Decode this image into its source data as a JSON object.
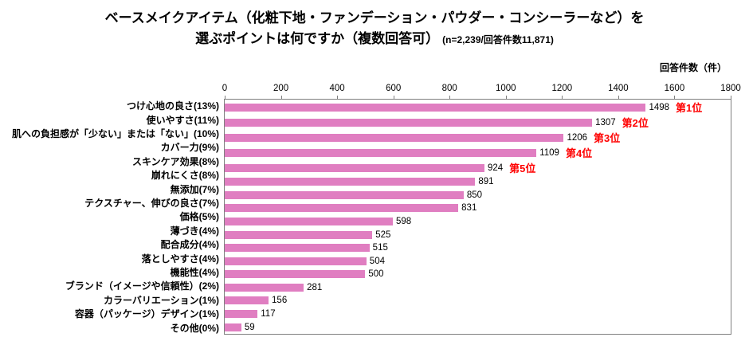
{
  "title": {
    "line1": "ベースメイクアイテム（化粧下地・ファンデーション・パウダー・コンシーラーなど）を",
    "line2": "選ぶポイントは何ですか（複数回答可）",
    "note": "(n=2,239/回答件数11,871)"
  },
  "axis_unit": "回答件数（件）",
  "chart_data": {
    "type": "bar",
    "orientation": "horizontal",
    "title": "ベースメイクアイテム（化粧下地・ファンデーション・パウダー・コンシーラーなど）を選ぶポイントは何ですか（複数回答可）",
    "xlabel": "回答件数（件）",
    "xlim": [
      0,
      1800
    ],
    "xticks": [
      0,
      200,
      400,
      600,
      800,
      1000,
      1200,
      1400,
      1600,
      1800
    ],
    "grid": false,
    "categories": [
      "つけ心地の良さ(13%)",
      "使いやすさ(11%)",
      "肌への負担感が「少ない」または「ない」(10%)",
      "カバー力(9%)",
      "スキンケア効果(8%)",
      "崩れにくさ(8%)",
      "無添加(7%)",
      "テクスチャー、伸びの良さ(7%)",
      "価格(5%)",
      "薄づき(4%)",
      "配合成分(4%)",
      "落としやすさ(4%)",
      "機能性(4%)",
      "ブランド（イメージや信頼性）(2%)",
      "カラーバリエーション(1%)",
      "容器（パッケージ）デザイン(1%)",
      "その他(0%)"
    ],
    "values": [
      1498,
      1307,
      1206,
      1109,
      924,
      891,
      850,
      831,
      598,
      525,
      515,
      504,
      500,
      281,
      156,
      117,
      59
    ],
    "ranks": [
      "第1位",
      "第2位",
      "第3位",
      "第4位",
      "第5位",
      null,
      null,
      null,
      null,
      null,
      null,
      null,
      null,
      null,
      null,
      null,
      null
    ],
    "bar_color": "#e07ec1",
    "rank_color": "#ff0000",
    "border_color": "#7f7f7f"
  }
}
